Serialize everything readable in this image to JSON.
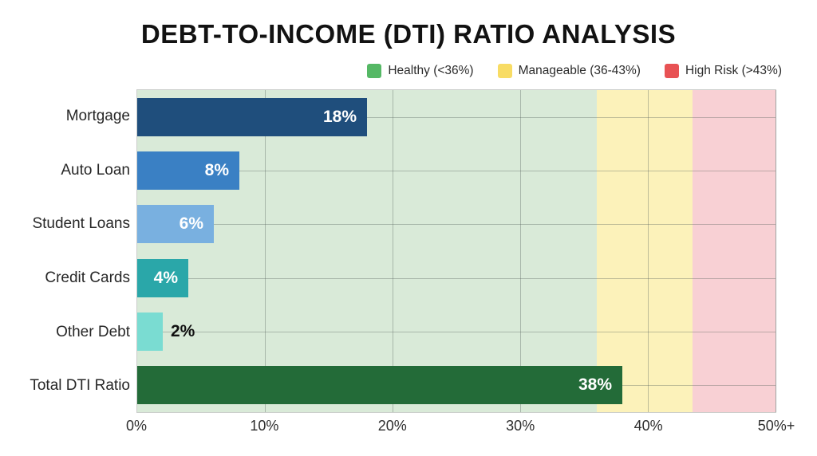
{
  "title": "DEBT-TO-INCOME (DTI) RATIO ANALYSIS",
  "legend": [
    {
      "name": "healthy",
      "label": "Healthy (<36%)",
      "color": "#55b865"
    },
    {
      "name": "manageable",
      "label": "Manageable (36-43%)",
      "color": "#f8dc64"
    },
    {
      "name": "high-risk",
      "label": "High Risk (>43%)",
      "color": "#e85254"
    }
  ],
  "chart_data": {
    "type": "bar",
    "orientation": "horizontal",
    "title": "DEBT-TO-INCOME (DTI) RATIO ANALYSIS",
    "categories": [
      "Mortgage",
      "Auto Loan",
      "Student Loans",
      "Credit Cards",
      "Other Debt",
      "Total DTI Ratio"
    ],
    "values": [
      18,
      8,
      6,
      4,
      2,
      38
    ],
    "value_labels": [
      "18%",
      "8%",
      "6%",
      "4%",
      "2%",
      "38%"
    ],
    "bar_colors": [
      "#1f4e7c",
      "#3a80c4",
      "#79b0e0",
      "#2aa7a9",
      "#7adcd2",
      "#236b38"
    ],
    "xlim": [
      0,
      50
    ],
    "x_tick_labels": [
      "0%",
      "10%",
      "20%",
      "30%",
      "40%",
      "50%+"
    ],
    "x_tick_values": [
      0,
      10,
      20,
      30,
      40,
      50
    ],
    "grid": true,
    "legend_position": "top-right",
    "background_zones": [
      {
        "label": "Healthy (<36%)",
        "from": 0,
        "to": 36,
        "color": "#d9ead8"
      },
      {
        "label": "Manageable (36-43%)",
        "from": 36,
        "to": 43.5,
        "color": "#fcf2ba"
      },
      {
        "label": "High Risk (>43%)",
        "from": 43.5,
        "to": 50,
        "color": "#f8d0d4"
      }
    ]
  }
}
